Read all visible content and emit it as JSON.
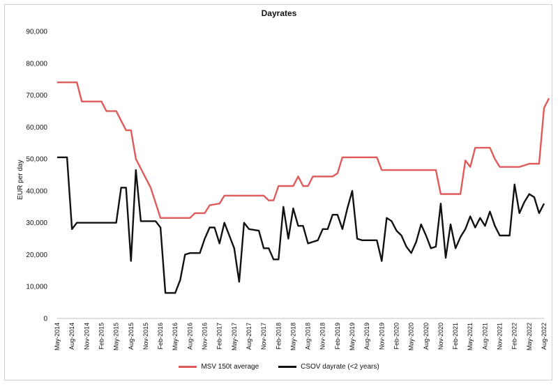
{
  "chart_data": {
    "type": "line",
    "title": "Dayrates",
    "xlabel": "",
    "ylabel": "EUR per day",
    "ylim": [
      0,
      90000
    ],
    "yticks": [
      0,
      10000,
      20000,
      30000,
      40000,
      50000,
      60000,
      70000,
      80000,
      90000
    ],
    "ytick_labels": [
      "0",
      "10,000",
      "20,000",
      "30,000",
      "40,000",
      "50,000",
      "60,000",
      "70,000",
      "80,000",
      "90,000"
    ],
    "xlim": [
      "2014-05",
      "2022-08"
    ],
    "x_tick_labels": [
      "May-2014",
      "Aug-2014",
      "Nov-2014",
      "Feb-2015",
      "May-2015",
      "Aug-2015",
      "Nov-2015",
      "Feb-2016",
      "May-2016",
      "Aug-2016",
      "Nov-2016",
      "Feb-2017",
      "May-2017",
      "Aug-2017",
      "Nov-2017",
      "Feb-2018",
      "May-2018",
      "Aug-2018",
      "Nov-2018",
      "Feb-2019",
      "May-2019",
      "Aug-2019",
      "Nov-2019",
      "Feb-2020",
      "May-2020",
      "Aug-2020",
      "Nov-2020",
      "Feb-2021",
      "May-2021",
      "Aug-2021",
      "Nov-2021",
      "Feb-2022",
      "May-2022",
      "Aug-2022"
    ],
    "grid": false,
    "legend_position": "bottom",
    "series": [
      {
        "name": "MSV 150t average",
        "color": "#e05a5a",
        "points": [
          [
            "2014-05",
            74000
          ],
          [
            "2014-09",
            74000
          ],
          [
            "2014-10",
            68000
          ],
          [
            "2015-02",
            68000
          ],
          [
            "2015-03",
            65000
          ],
          [
            "2015-05",
            65000
          ],
          [
            "2015-07",
            59000
          ],
          [
            "2015-08",
            59000
          ],
          [
            "2015-09",
            50000
          ],
          [
            "2015-12",
            41000
          ],
          [
            "2016-02",
            31500
          ],
          [
            "2016-08",
            31500
          ],
          [
            "2016-09",
            33000
          ],
          [
            "2016-11",
            33000
          ],
          [
            "2016-12",
            35500
          ],
          [
            "2017-02",
            36000
          ],
          [
            "2017-03",
            38500
          ],
          [
            "2017-11",
            38500
          ],
          [
            "2017-12",
            37000
          ],
          [
            "2018-01",
            37000
          ],
          [
            "2018-02",
            41500
          ],
          [
            "2018-05",
            41500
          ],
          [
            "2018-06",
            44500
          ],
          [
            "2018-07",
            41500
          ],
          [
            "2018-08",
            41500
          ],
          [
            "2018-09",
            44500
          ],
          [
            "2019-01",
            44500
          ],
          [
            "2019-02",
            45500
          ],
          [
            "2019-03",
            50500
          ],
          [
            "2019-10",
            50500
          ],
          [
            "2019-11",
            46500
          ],
          [
            "2020-10",
            46500
          ],
          [
            "2020-11",
            39000
          ],
          [
            "2021-03",
            39000
          ],
          [
            "2021-04",
            49500
          ],
          [
            "2021-05",
            47500
          ],
          [
            "2021-06",
            53500
          ],
          [
            "2021-09",
            53500
          ],
          [
            "2021-10",
            50000
          ],
          [
            "2021-11",
            47500
          ],
          [
            "2022-03",
            47500
          ],
          [
            "2022-05",
            48500
          ],
          [
            "2022-07",
            48500
          ],
          [
            "2022-08",
            66000
          ],
          [
            "2022-09",
            69000
          ]
        ]
      },
      {
        "name": "CSOV dayrate (<2 years)",
        "color": "#111111",
        "points": [
          [
            "2014-05",
            50500
          ],
          [
            "2014-07",
            50500
          ],
          [
            "2014-08",
            28000
          ],
          [
            "2014-09",
            30000
          ],
          [
            "2015-05",
            30000
          ],
          [
            "2015-06",
            41000
          ],
          [
            "2015-07",
            41000
          ],
          [
            "2015-08",
            18000
          ],
          [
            "2015-09",
            46500
          ],
          [
            "2015-10",
            30500
          ],
          [
            "2016-01",
            30500
          ],
          [
            "2016-02",
            28500
          ],
          [
            "2016-03",
            8000
          ],
          [
            "2016-05",
            8000
          ],
          [
            "2016-06",
            12000
          ],
          [
            "2016-07",
            20000
          ],
          [
            "2016-08",
            20500
          ],
          [
            "2016-10",
            20500
          ],
          [
            "2016-11",
            25000
          ],
          [
            "2016-12",
            28500
          ],
          [
            "2017-01",
            28500
          ],
          [
            "2017-02",
            23500
          ],
          [
            "2017-03",
            30000
          ],
          [
            "2017-05",
            22000
          ],
          [
            "2017-06",
            11500
          ],
          [
            "2017-07",
            30000
          ],
          [
            "2017-08",
            28000
          ],
          [
            "2017-10",
            27500
          ],
          [
            "2017-11",
            22000
          ],
          [
            "2017-12",
            22000
          ],
          [
            "2018-01",
            18500
          ],
          [
            "2018-02",
            18500
          ],
          [
            "2018-03",
            35000
          ],
          [
            "2018-04",
            25000
          ],
          [
            "2018-05",
            34500
          ],
          [
            "2018-06",
            29000
          ],
          [
            "2018-07",
            29000
          ],
          [
            "2018-08",
            23500
          ],
          [
            "2018-10",
            24500
          ],
          [
            "2018-11",
            28000
          ],
          [
            "2018-12",
            28000
          ],
          [
            "2019-01",
            32500
          ],
          [
            "2019-02",
            32500
          ],
          [
            "2019-03",
            28000
          ],
          [
            "2019-04",
            34500
          ],
          [
            "2019-05",
            40000
          ],
          [
            "2019-06",
            25000
          ],
          [
            "2019-07",
            24500
          ],
          [
            "2019-10",
            24500
          ],
          [
            "2019-11",
            18000
          ],
          [
            "2019-12",
            31500
          ],
          [
            "2020-01",
            30500
          ],
          [
            "2020-02",
            27500
          ],
          [
            "2020-03",
            26000
          ],
          [
            "2020-04",
            22500
          ],
          [
            "2020-05",
            20500
          ],
          [
            "2020-06",
            24000
          ],
          [
            "2020-07",
            29500
          ],
          [
            "2020-08",
            26000
          ],
          [
            "2020-09",
            22000
          ],
          [
            "2020-10",
            22500
          ],
          [
            "2020-11",
            36000
          ],
          [
            "2020-12",
            19000
          ],
          [
            "2021-01",
            29500
          ],
          [
            "2021-02",
            22000
          ],
          [
            "2021-03",
            25500
          ],
          [
            "2021-04",
            28000
          ],
          [
            "2021-05",
            32000
          ],
          [
            "2021-06",
            28500
          ],
          [
            "2021-07",
            31500
          ],
          [
            "2021-08",
            29000
          ],
          [
            "2021-09",
            33500
          ],
          [
            "2021-10",
            29000
          ],
          [
            "2021-11",
            26000
          ],
          [
            "2022-01",
            26000
          ],
          [
            "2022-02",
            42000
          ],
          [
            "2022-03",
            33000
          ],
          [
            "2022-04",
            36500
          ],
          [
            "2022-05",
            39000
          ],
          [
            "2022-06",
            38000
          ],
          [
            "2022-07",
            33000
          ],
          [
            "2022-08",
            36000
          ]
        ]
      }
    ]
  }
}
